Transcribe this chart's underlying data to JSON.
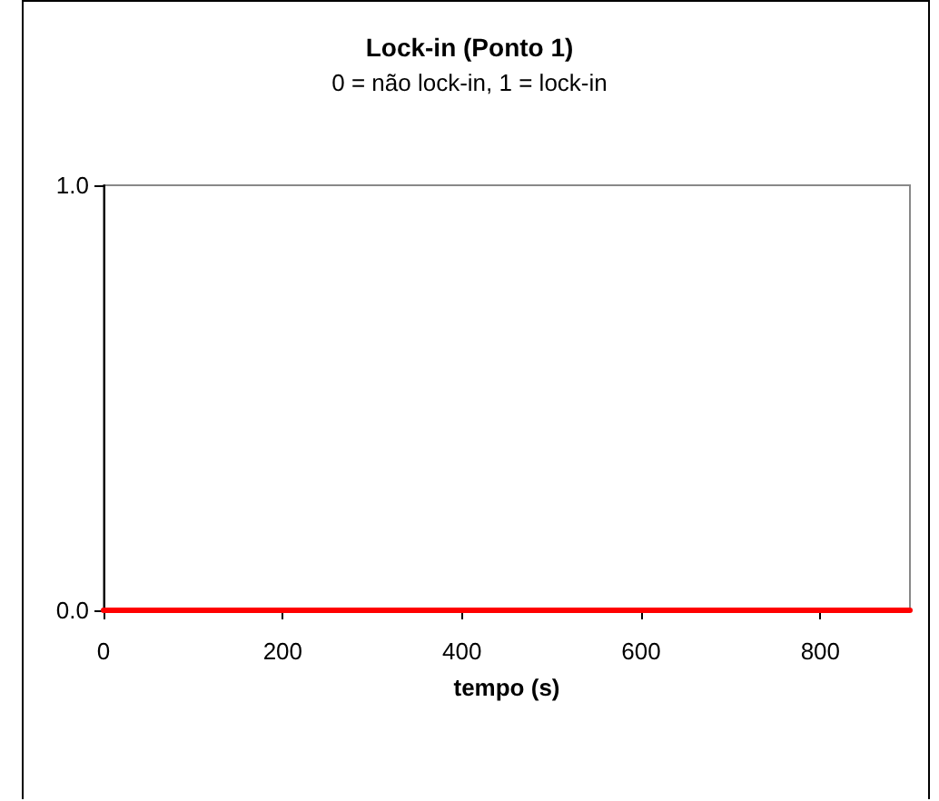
{
  "chart_data": {
    "type": "line",
    "title": "Lock-in (Ponto 1)",
    "subtitle": "0 = não lock-in, 1 = lock-in",
    "xlabel": "tempo (s)",
    "x": [
      0,
      900
    ],
    "series": [
      {
        "color": "#ff0000",
        "values": [
          0,
          0
        ]
      }
    ],
    "xlim": [
      0,
      900
    ],
    "xticks": [
      0,
      200,
      400,
      600,
      800
    ],
    "ylim": [
      0,
      1
    ],
    "yticks": [
      {
        "value": 0,
        "label": "0.0"
      },
      {
        "value": 1,
        "label": "1.0"
      }
    ],
    "grid": false,
    "marker": "none",
    "line_style": "solid"
  }
}
